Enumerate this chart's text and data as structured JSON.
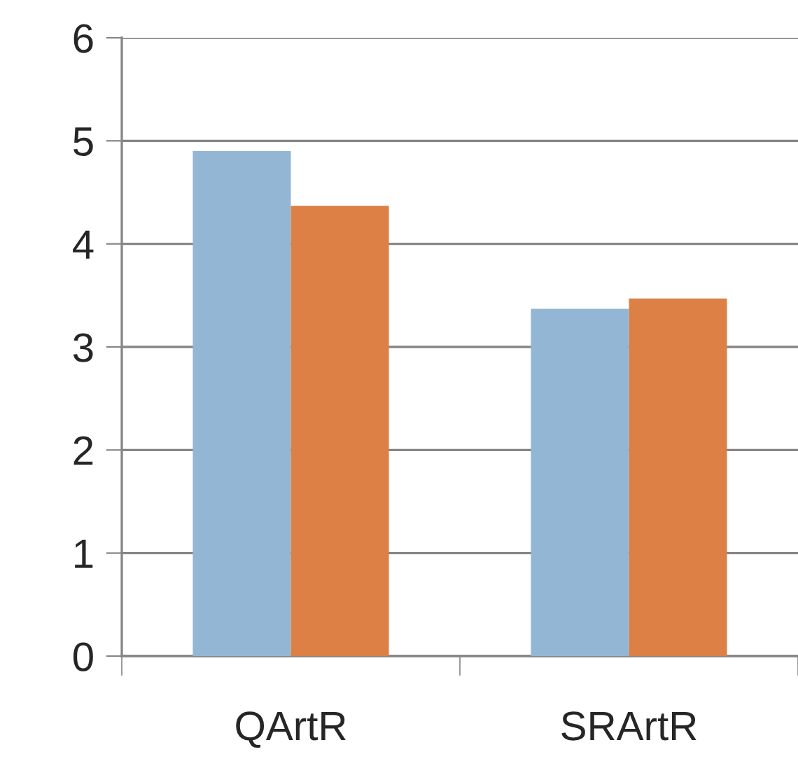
{
  "chart_data": {
    "type": "bar",
    "categories": [
      "QArtR",
      "SRArtR"
    ],
    "series": [
      {
        "color": "#93b6d4",
        "values": [
          4.9,
          3.37
        ]
      },
      {
        "color": "#dd8046",
        "values": [
          4.37,
          3.47
        ]
      }
    ],
    "ylim": [
      0,
      6
    ],
    "yticks": [
      0,
      1,
      2,
      3,
      4,
      5,
      6
    ],
    "grid": "y"
  }
}
